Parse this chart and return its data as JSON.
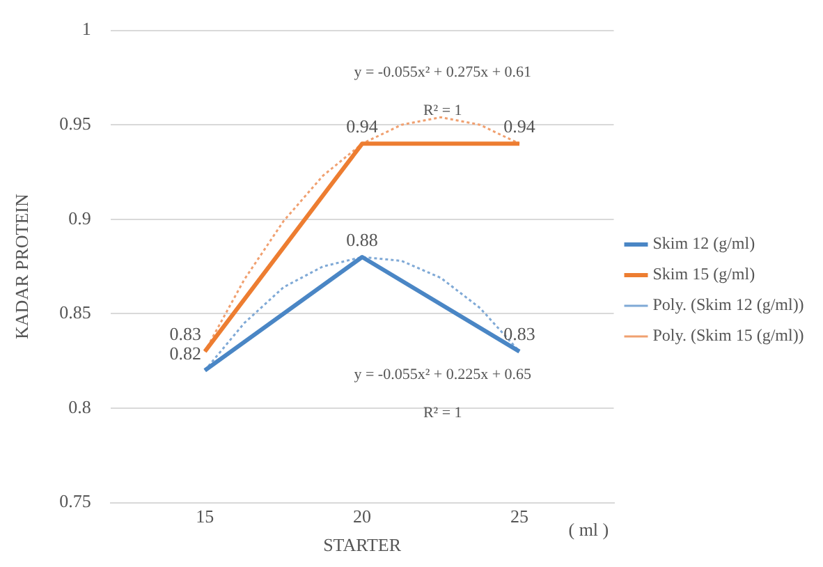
{
  "chart_data": {
    "type": "line",
    "xlabel": "STARTER",
    "ylabel": "KADAR PROTEIN",
    "x": [
      15,
      20,
      25
    ],
    "xlim": [
      12,
      28
    ],
    "xticks": [
      15,
      20,
      25
    ],
    "ylim": [
      0.75,
      1
    ],
    "yticks": [
      0.75,
      0.8,
      0.85,
      0.9,
      0.95,
      1
    ],
    "grid": "y",
    "legend": "right",
    "marker": "none",
    "series": [
      {
        "name": "Skim 12 (g/ml)",
        "color": "#4a86c5",
        "values": [
          0.82,
          0.88,
          0.83
        ],
        "value_labels": [
          "0.82",
          "0.88",
          "0.83"
        ]
      },
      {
        "name": "Skim 15 (g/ml)",
        "color": "#ed7d31",
        "values": [
          0.83,
          0.94,
          0.94
        ],
        "value_labels": [
          "0.83",
          "0.94",
          "0.94"
        ]
      },
      {
        "name": "Poly. (Skim 12 (g/ml))",
        "color": "#7fa9d6",
        "line_style": "dotted",
        "x": [
          15,
          16.25,
          17.5,
          18.75,
          20,
          21.25,
          22.5,
          23.75,
          25
        ],
        "values": [
          0.82,
          0.845,
          0.864,
          0.875,
          0.88,
          0.878,
          0.869,
          0.853,
          0.83
        ]
      },
      {
        "name": "Poly. (Skim 15 (g/ml))",
        "color": "#f0a070",
        "line_style": "dotted",
        "x": [
          15,
          16.25,
          17.5,
          18.75,
          20,
          21.25,
          22.5,
          23.75,
          25
        ],
        "values": [
          0.83,
          0.868,
          0.899,
          0.923,
          0.94,
          0.95,
          0.954,
          0.95,
          0.94
        ]
      }
    ],
    "annotations": [
      "y = -0.055x² + 0.275x + 0.61",
      "R² = 1",
      "y = -0.055x² + 0.225x + 0.65",
      "R² = 1",
      "( ml )"
    ]
  }
}
